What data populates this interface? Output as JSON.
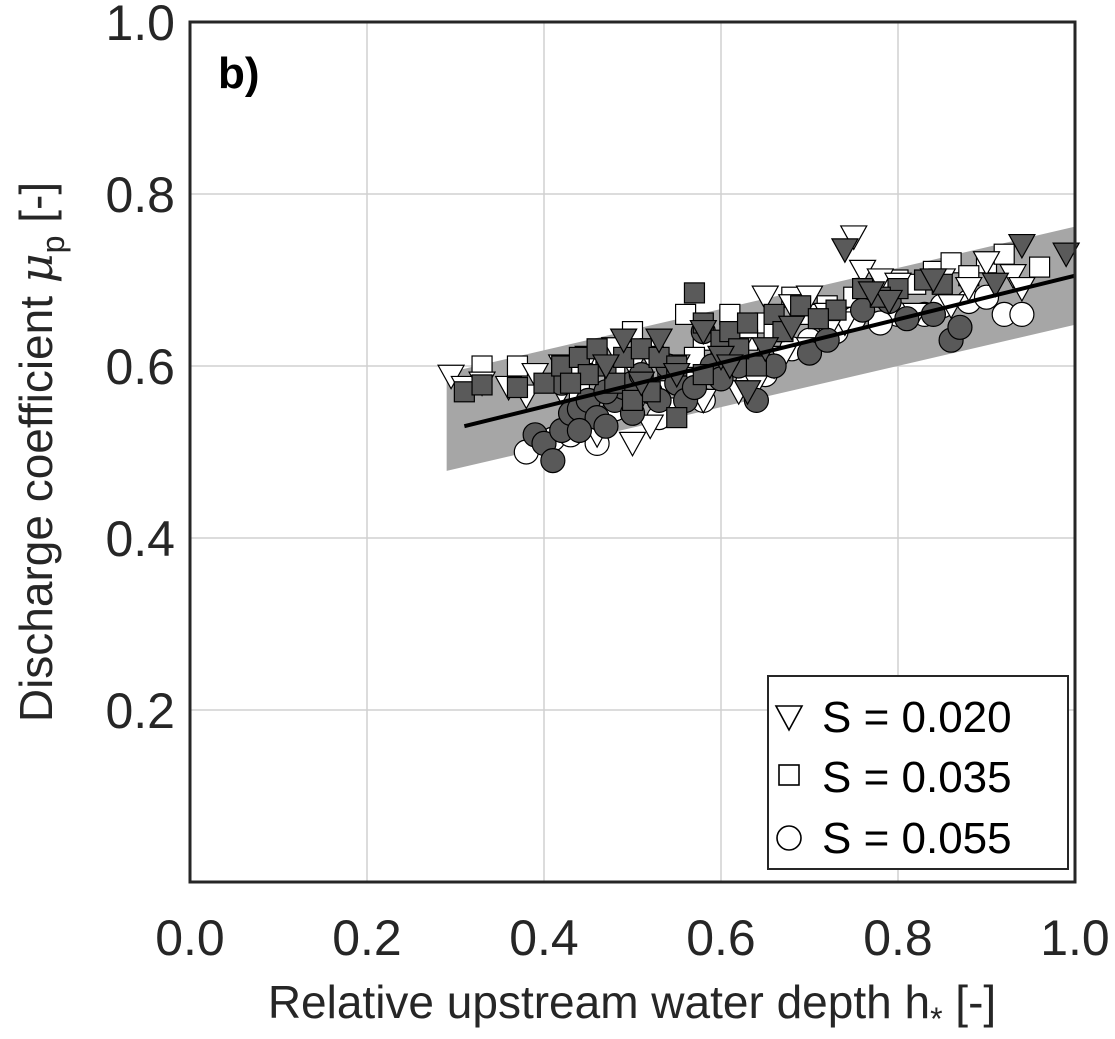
{
  "chart_data": {
    "type": "scatter",
    "panel_label": "b)",
    "xlabel": "Relative upstream water depth h",
    "xlabel_sub": "*",
    "xlabel_unit": " [-]",
    "ylabel": "Discharge coefficient ",
    "ylabel_symbol": "μ",
    "ylabel_sub": "p",
    "ylabel_unit": " [-]",
    "xlim": [
      0.0,
      1.0
    ],
    "ylim": [
      0.0,
      1.0
    ],
    "xticks": [
      "0.0",
      "0.2",
      "0.4",
      "0.6",
      "0.8",
      "1.0"
    ],
    "yticks": [
      "0.2",
      "0.4",
      "0.6",
      "0.8",
      "1.0"
    ],
    "grid": true,
    "legend_position": "bottom-right",
    "fit_line": {
      "x": [
        0.31,
        1.0
      ],
      "y": [
        0.53,
        0.705
      ]
    },
    "fit_band": {
      "x": [
        0.29,
        1.0
      ],
      "y_upper": [
        0.592,
        0.762
      ],
      "y_lower": [
        0.478,
        0.648
      ]
    },
    "series": [
      {
        "name": "S = 0.020",
        "marker": "triangle-down",
        "open_points": [
          [
            0.295,
            0.588
          ],
          [
            0.31,
            0.575
          ],
          [
            0.33,
            0.58
          ],
          [
            0.36,
            0.575
          ],
          [
            0.38,
            0.565
          ],
          [
            0.39,
            0.59
          ],
          [
            0.42,
            0.6
          ],
          [
            0.45,
            0.61
          ],
          [
            0.48,
            0.62
          ],
          [
            0.5,
            0.6
          ],
          [
            0.52,
            0.61
          ],
          [
            0.55,
            0.6
          ],
          [
            0.57,
            0.58
          ],
          [
            0.6,
            0.6
          ],
          [
            0.62,
            0.62
          ],
          [
            0.65,
            0.68
          ],
          [
            0.68,
            0.67
          ],
          [
            0.7,
            0.68
          ],
          [
            0.72,
            0.66
          ],
          [
            0.75,
            0.75
          ],
          [
            0.76,
            0.71
          ],
          [
            0.78,
            0.7
          ],
          [
            0.8,
            0.695
          ],
          [
            0.85,
            0.7
          ],
          [
            0.88,
            0.69
          ],
          [
            0.9,
            0.72
          ],
          [
            0.93,
            0.705
          ],
          [
            0.46,
            0.52
          ],
          [
            0.5,
            0.51
          ],
          [
            0.52,
            0.53
          ],
          [
            0.55,
            0.55
          ],
          [
            0.58,
            0.56
          ],
          [
            0.62,
            0.57
          ],
          [
            0.64,
            0.58
          ],
          [
            0.66,
            0.6
          ],
          [
            0.7,
            0.62
          ],
          [
            0.74,
            0.65
          ],
          [
            0.82,
            0.66
          ],
          [
            0.86,
            0.67
          ],
          [
            0.94,
            0.69
          ],
          [
            0.42,
            0.57
          ],
          [
            0.44,
            0.59
          ],
          [
            0.53,
            0.57
          ],
          [
            0.56,
            0.58
          ],
          [
            0.67,
            0.61
          ],
          [
            0.72,
            0.64
          ]
        ],
        "filled_points": [
          [
            0.49,
            0.63
          ],
          [
            0.53,
            0.63
          ],
          [
            0.58,
            0.64
          ],
          [
            0.6,
            0.61
          ],
          [
            0.63,
            0.57
          ],
          [
            0.74,
            0.735
          ],
          [
            0.79,
            0.675
          ],
          [
            0.91,
            0.695
          ],
          [
            0.94,
            0.74
          ],
          [
            0.99,
            0.73
          ],
          [
            0.55,
            0.59
          ],
          [
            0.47,
            0.6
          ],
          [
            0.65,
            0.62
          ],
          [
            0.77,
            0.685
          ],
          [
            0.84,
            0.7
          ],
          [
            0.61,
            0.6
          ],
          [
            0.68,
            0.645
          ],
          [
            0.51,
            0.58
          ]
        ]
      },
      {
        "name": "S = 0.035",
        "marker": "square",
        "open_points": [
          [
            0.33,
            0.6
          ],
          [
            0.37,
            0.6
          ],
          [
            0.42,
            0.6
          ],
          [
            0.46,
            0.61
          ],
          [
            0.5,
            0.64
          ],
          [
            0.52,
            0.62
          ],
          [
            0.56,
            0.66
          ],
          [
            0.58,
            0.63
          ],
          [
            0.61,
            0.66
          ],
          [
            0.65,
            0.65
          ],
          [
            0.68,
            0.68
          ],
          [
            0.72,
            0.67
          ],
          [
            0.75,
            0.68
          ],
          [
            0.8,
            0.7
          ],
          [
            0.84,
            0.71
          ],
          [
            0.86,
            0.72
          ],
          [
            0.9,
            0.72
          ],
          [
            0.92,
            0.73
          ],
          [
            0.78,
            0.69
          ],
          [
            0.7,
            0.66
          ],
          [
            0.54,
            0.6
          ],
          [
            0.48,
            0.59
          ],
          [
            0.44,
            0.57
          ],
          [
            0.6,
            0.62
          ],
          [
            0.66,
            0.64
          ],
          [
            0.88,
            0.705
          ],
          [
            0.82,
            0.695
          ],
          [
            0.96,
            0.715
          ],
          [
            0.63,
            0.63
          ],
          [
            0.57,
            0.61
          ]
        ],
        "filled_points": [
          [
            0.31,
            0.57
          ],
          [
            0.33,
            0.578
          ],
          [
            0.37,
            0.575
          ],
          [
            0.4,
            0.58
          ],
          [
            0.42,
            0.6
          ],
          [
            0.44,
            0.61
          ],
          [
            0.46,
            0.62
          ],
          [
            0.47,
            0.6
          ],
          [
            0.49,
            0.61
          ],
          [
            0.51,
            0.62
          ],
          [
            0.53,
            0.61
          ],
          [
            0.55,
            0.6
          ],
          [
            0.57,
            0.685
          ],
          [
            0.58,
            0.65
          ],
          [
            0.6,
            0.63
          ],
          [
            0.61,
            0.64
          ],
          [
            0.63,
            0.65
          ],
          [
            0.66,
            0.66
          ],
          [
            0.69,
            0.67
          ],
          [
            0.73,
            0.665
          ],
          [
            0.76,
            0.69
          ],
          [
            0.8,
            0.69
          ],
          [
            0.83,
            0.7
          ],
          [
            0.85,
            0.695
          ],
          [
            0.55,
            0.54
          ],
          [
            0.58,
            0.59
          ],
          [
            0.52,
            0.57
          ],
          [
            0.48,
            0.58
          ],
          [
            0.5,
            0.56
          ],
          [
            0.64,
            0.6
          ],
          [
            0.67,
            0.64
          ],
          [
            0.71,
            0.655
          ],
          [
            0.78,
            0.68
          ],
          [
            0.45,
            0.59
          ],
          [
            0.43,
            0.58
          ],
          [
            0.62,
            0.62
          ]
        ]
      },
      {
        "name": "S = 0.055",
        "marker": "circle",
        "open_points": [
          [
            0.38,
            0.5
          ],
          [
            0.41,
            0.515
          ],
          [
            0.43,
            0.52
          ],
          [
            0.45,
            0.53
          ],
          [
            0.48,
            0.55
          ],
          [
            0.5,
            0.56
          ],
          [
            0.55,
            0.58
          ],
          [
            0.6,
            0.59
          ],
          [
            0.63,
            0.58
          ],
          [
            0.65,
            0.59
          ],
          [
            0.7,
            0.63
          ],
          [
            0.75,
            0.655
          ],
          [
            0.8,
            0.66
          ],
          [
            0.85,
            0.67
          ],
          [
            0.88,
            0.675
          ],
          [
            0.92,
            0.66
          ],
          [
            0.94,
            0.66
          ],
          [
            0.9,
            0.68
          ],
          [
            0.78,
            0.65
          ],
          [
            0.68,
            0.62
          ],
          [
            0.58,
            0.56
          ],
          [
            0.46,
            0.51
          ],
          [
            0.53,
            0.54
          ],
          [
            0.73,
            0.64
          ],
          [
            0.83,
            0.66
          ]
        ],
        "filled_points": [
          [
            0.39,
            0.52
          ],
          [
            0.4,
            0.51
          ],
          [
            0.41,
            0.49
          ],
          [
            0.42,
            0.525
          ],
          [
            0.43,
            0.545
          ],
          [
            0.44,
            0.55
          ],
          [
            0.45,
            0.56
          ],
          [
            0.46,
            0.54
          ],
          [
            0.47,
            0.53
          ],
          [
            0.48,
            0.56
          ],
          [
            0.49,
            0.575
          ],
          [
            0.5,
            0.58
          ],
          [
            0.51,
            0.59
          ],
          [
            0.52,
            0.57
          ],
          [
            0.54,
            0.6
          ],
          [
            0.55,
            0.58
          ],
          [
            0.56,
            0.56
          ],
          [
            0.58,
            0.64
          ],
          [
            0.59,
            0.6
          ],
          [
            0.61,
            0.62
          ],
          [
            0.62,
            0.6
          ],
          [
            0.64,
            0.56
          ],
          [
            0.66,
            0.6
          ],
          [
            0.7,
            0.615
          ],
          [
            0.72,
            0.63
          ],
          [
            0.76,
            0.665
          ],
          [
            0.79,
            0.675
          ],
          [
            0.81,
            0.655
          ],
          [
            0.84,
            0.66
          ],
          [
            0.86,
            0.63
          ],
          [
            0.87,
            0.645
          ],
          [
            0.42,
            0.58
          ],
          [
            0.44,
            0.525
          ],
          [
            0.47,
            0.57
          ],
          [
            0.5,
            0.545
          ],
          [
            0.53,
            0.56
          ],
          [
            0.57,
            0.575
          ],
          [
            0.6,
            0.585
          ]
        ]
      }
    ]
  }
}
